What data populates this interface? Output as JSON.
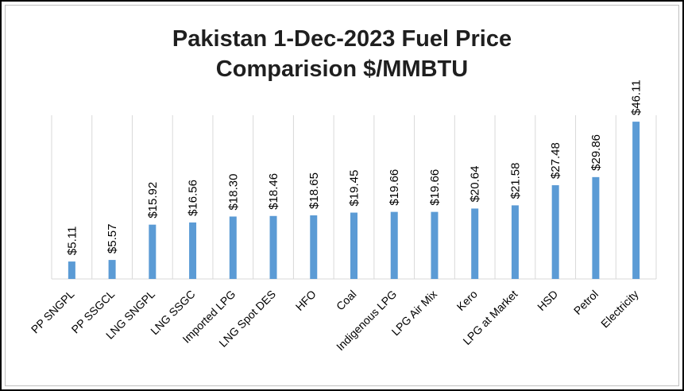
{
  "chart_data": {
    "type": "bar",
    "title_lines": [
      "Pakistan 1-Dec-2023 Fuel Price",
      "Comparision $/MMBTU"
    ],
    "categories": [
      "PP SNGPL",
      "PP SSGCL",
      "LNG SNGPL",
      "LNG SSGC",
      "Imported LPG",
      "LNG Spot DES",
      "HFO",
      "Coal",
      "Indigenous LPG",
      "LPG Air Mix",
      "Kero",
      "LPG at Market",
      "HSD",
      "Petrol",
      "Electricity"
    ],
    "values": [
      5.11,
      5.57,
      15.92,
      16.56,
      18.3,
      18.46,
      18.65,
      19.45,
      19.66,
      19.66,
      20.64,
      21.58,
      27.48,
      29.86,
      46.11
    ],
    "data_labels": [
      "$5.11",
      "$5.57",
      "$15.92",
      "$16.56",
      "$18.30",
      "$18.46",
      "$18.65",
      "$19.45",
      "$19.66",
      "$19.66",
      "$20.64",
      "$21.58",
      "$27.48",
      "$29.86",
      "$46.11"
    ],
    "ylim": [
      0,
      48
    ],
    "grid": "vertical separators between categories",
    "legend": "none",
    "bar_color": "#5b9bd5",
    "grid_color": "#d9d9d9"
  }
}
